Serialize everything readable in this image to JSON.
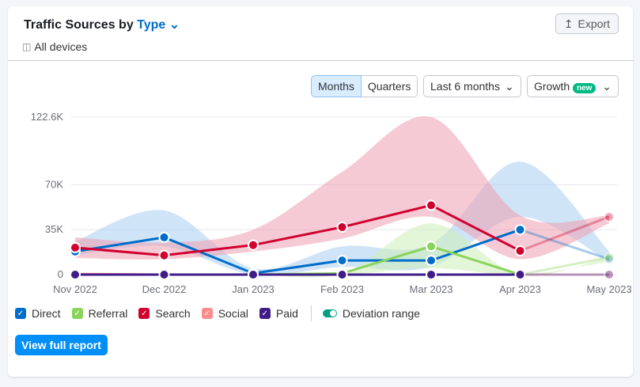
{
  "header": {
    "title_prefix": "Traffic Sources by",
    "title_type": "Type",
    "devices": "All devices",
    "export_label": "Export"
  },
  "controls": {
    "months": "Months",
    "quarters": "Quarters",
    "range": "Last 6 months",
    "growth": "Growth",
    "new_badge": "new"
  },
  "legend": {
    "items": [
      {
        "label": "Direct",
        "color": "#006dca"
      },
      {
        "label": "Referral",
        "color": "#8bd45c"
      },
      {
        "label": "Search",
        "color": "#d1002f"
      },
      {
        "label": "Social",
        "color": "#ff8c8c"
      },
      {
        "label": "Paid",
        "color": "#3f1c87"
      }
    ],
    "deviation": "Deviation range"
  },
  "view_report": "View full report",
  "chart_data": {
    "type": "line",
    "categories": [
      "Nov 2022",
      "Dec 2022",
      "Jan 2023",
      "Feb 2023",
      "Mar 2023",
      "Apr 2023",
      "May 2023"
    ],
    "ylim": [
      0,
      122.6
    ],
    "yticks": [
      {
        "v": 0,
        "label": "0"
      },
      {
        "v": 35,
        "label": "35K"
      },
      {
        "v": 70,
        "label": "70K"
      },
      {
        "v": 122.6,
        "label": "122.6K"
      }
    ],
    "grid": true,
    "series": [
      {
        "name": "Direct",
        "color": "#006dca",
        "values": [
          18,
          29,
          1,
          11,
          11,
          35,
          12
        ],
        "band": [
          [
            15,
            26
          ],
          [
            22,
            50
          ],
          [
            0,
            5
          ],
          [
            6,
            22
          ],
          [
            6,
            24
          ],
          [
            45,
            88
          ],
          [
            10,
            18
          ]
        ],
        "band_color": "#a7cdf0"
      },
      {
        "name": "Referral",
        "color": "#8bd45c",
        "values": [
          0,
          0,
          0,
          1,
          22,
          0,
          13.5
        ],
        "band": [
          [
            0,
            0
          ],
          [
            0,
            0
          ],
          [
            0,
            0
          ],
          [
            0,
            1
          ],
          [
            5,
            40
          ],
          [
            0,
            0
          ],
          [
            10,
            14
          ]
        ],
        "band_color": "#cdeeb8"
      },
      {
        "name": "Search",
        "color": "#d1002f",
        "values": [
          21,
          15,
          23,
          37,
          54,
          18.5,
          45
        ],
        "band": [
          [
            13,
            29
          ],
          [
            12,
            25
          ],
          [
            18,
            35
          ],
          [
            28,
            80
          ],
          [
            45,
            122.6
          ],
          [
            12,
            46
          ],
          [
            40,
            46
          ]
        ],
        "band_color": "#ee9fb0"
      },
      {
        "name": "Social",
        "color": "#ff8c8c",
        "values": [
          0.5,
          0,
          0,
          0,
          0,
          0,
          0
        ],
        "band": null,
        "band_color": "#ffc6c6"
      },
      {
        "name": "Paid",
        "color": "#3f1c87",
        "values": [
          0,
          0,
          0,
          0,
          0,
          0,
          0
        ],
        "band": null,
        "band_color": "#c2b5e0"
      }
    ]
  }
}
